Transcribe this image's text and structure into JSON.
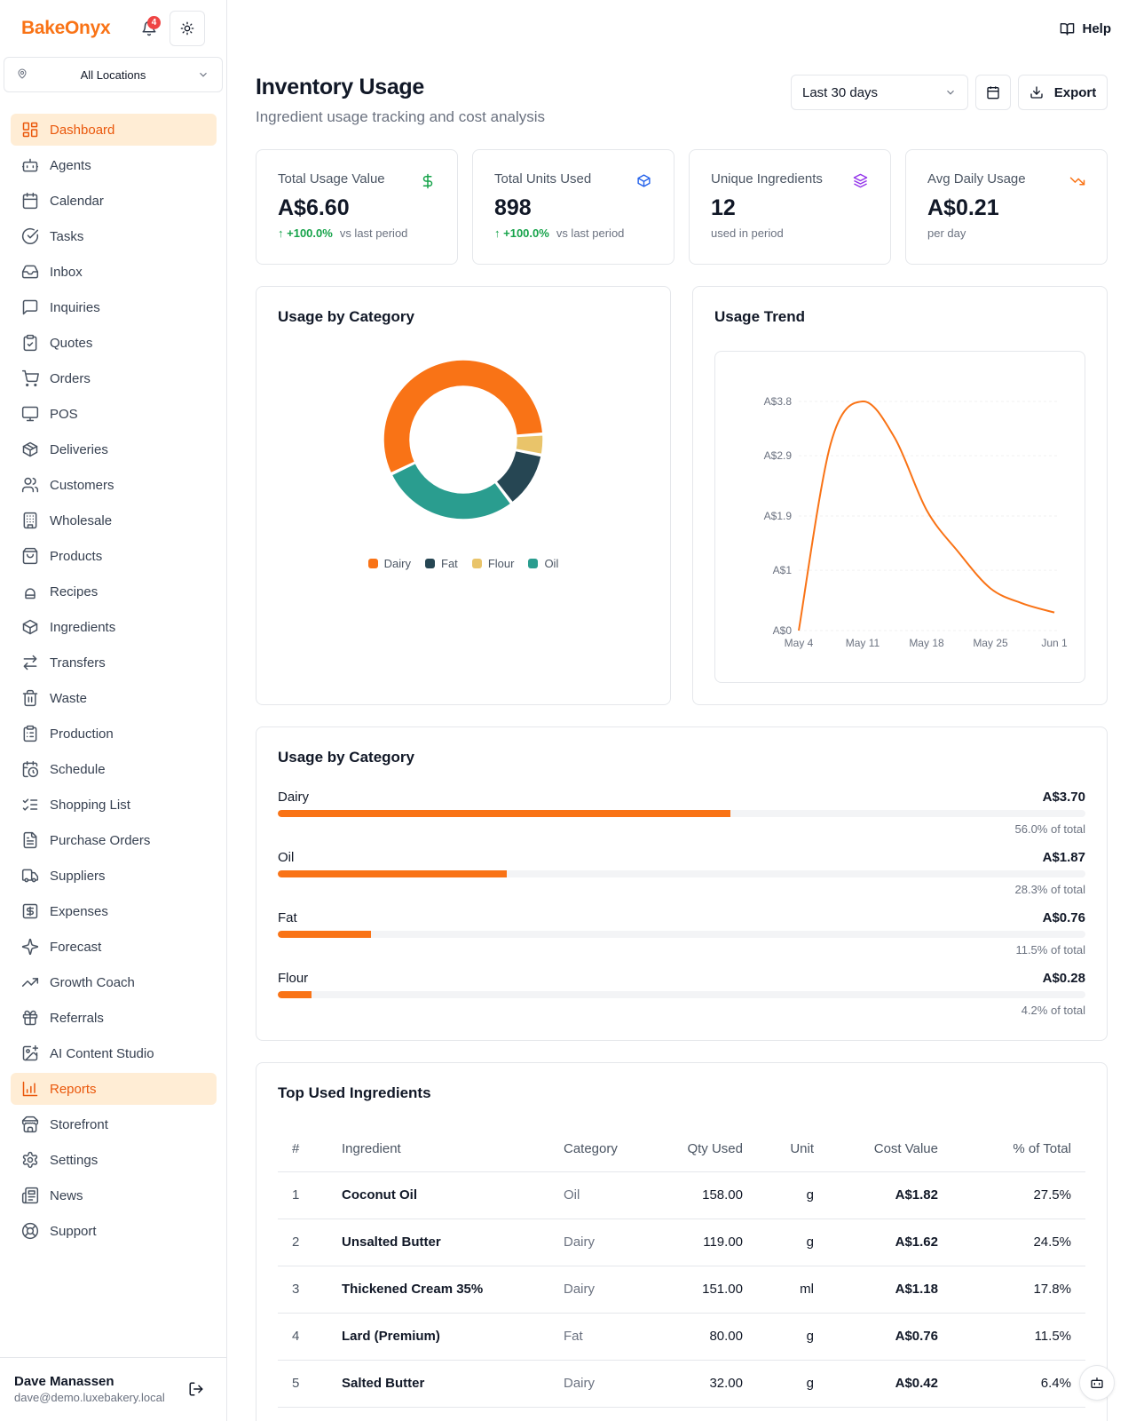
{
  "app": {
    "brand": "BakeOnyx",
    "notification_count": "4"
  },
  "sidebar": {
    "location": "All Locations",
    "items": [
      {
        "label": "Dashboard",
        "icon": "dashboard-icon",
        "active": true
      },
      {
        "label": "Agents",
        "icon": "bot-icon"
      },
      {
        "label": "Calendar",
        "icon": "calendar-icon"
      },
      {
        "label": "Tasks",
        "icon": "check-circle-icon"
      },
      {
        "label": "Inbox",
        "icon": "inbox-icon"
      },
      {
        "label": "Inquiries",
        "icon": "message-icon"
      },
      {
        "label": "Quotes",
        "icon": "clipboard-check-icon"
      },
      {
        "label": "Orders",
        "icon": "cart-icon"
      },
      {
        "label": "POS",
        "icon": "monitor-icon"
      },
      {
        "label": "Deliveries",
        "icon": "package-icon"
      },
      {
        "label": "Customers",
        "icon": "users-icon"
      },
      {
        "label": "Wholesale",
        "icon": "building-icon"
      },
      {
        "label": "Products",
        "icon": "shopping-bag-icon"
      },
      {
        "label": "Recipes",
        "icon": "chef-hat-icon"
      },
      {
        "label": "Ingredients",
        "icon": "box-icon"
      },
      {
        "label": "Transfers",
        "icon": "arrows-swap-icon"
      },
      {
        "label": "Waste",
        "icon": "trash-icon"
      },
      {
        "label": "Production",
        "icon": "clipboard-icon"
      },
      {
        "label": "Schedule",
        "icon": "calendar-clock-icon"
      },
      {
        "label": "Shopping List",
        "icon": "list-checks-icon"
      },
      {
        "label": "Purchase Orders",
        "icon": "file-text-icon"
      },
      {
        "label": "Suppliers",
        "icon": "truck-icon"
      },
      {
        "label": "Expenses",
        "icon": "dollar-square-icon"
      },
      {
        "label": "Forecast",
        "icon": "sparkles-icon"
      },
      {
        "label": "Growth Coach",
        "icon": "trending-up-icon"
      },
      {
        "label": "Referrals",
        "icon": "gift-icon"
      },
      {
        "label": "AI Content Studio",
        "icon": "image-plus-icon"
      },
      {
        "label": "Reports",
        "icon": "bar-chart-icon",
        "active": true
      },
      {
        "label": "Storefront",
        "icon": "store-icon"
      },
      {
        "label": "Settings",
        "icon": "gear-icon"
      },
      {
        "label": "News",
        "icon": "newspaper-icon"
      },
      {
        "label": "Support",
        "icon": "life-buoy-icon"
      }
    ],
    "user": {
      "name": "Dave Manassen",
      "email": "dave@demo.luxebakery.local"
    }
  },
  "header": {
    "help": "Help",
    "title": "Inventory Usage",
    "subtitle": "Ingredient usage tracking and cost analysis",
    "range": "Last 30 days",
    "export": "Export"
  },
  "stats": [
    {
      "label": "Total Usage Value",
      "value": "A$6.60",
      "change": "+100.0%",
      "foot": "vs last period",
      "icon": "dollar-icon",
      "icon_color": "#16a34a"
    },
    {
      "label": "Total Units Used",
      "value": "898",
      "change": "+100.0%",
      "foot": "vs last period",
      "icon": "box-icon",
      "icon_color": "#2563eb"
    },
    {
      "label": "Unique Ingredients",
      "value": "12",
      "change": "",
      "foot": "used in period",
      "icon": "layers-icon",
      "icon_color": "#9333ea"
    },
    {
      "label": "Avg Daily Usage",
      "value": "A$0.21",
      "change": "",
      "foot": "per day",
      "icon": "trending-down-icon",
      "icon_color": "#f97316"
    }
  ],
  "donut": {
    "title": "Usage by Category",
    "chart_data": {
      "type": "pie",
      "categories": [
        "Dairy",
        "Fat",
        "Flour",
        "Oil"
      ],
      "values": [
        3.7,
        0.76,
        0.28,
        1.87
      ],
      "colors": [
        "#f97316",
        "#264653",
        "#e9c46a",
        "#2a9d8f"
      ],
      "legend": "bottom"
    }
  },
  "trend": {
    "title": "Usage Trend",
    "chart_data": {
      "type": "line",
      "x": [
        "May 4",
        "May 8",
        "May 11",
        "May 14",
        "May 18",
        "May 21",
        "May 25",
        "May 28",
        "Jun 1"
      ],
      "values": [
        0,
        3.1,
        3.8,
        3.2,
        2.0,
        1.3,
        0.7,
        0.45,
        0.3
      ],
      "x_ticks": [
        "May 4",
        "May 11",
        "May 18",
        "May 25",
        "Jun 1"
      ],
      "y_ticks": [
        "A$0",
        "A$1",
        "A$1.9",
        "A$2.9",
        "A$3.8"
      ],
      "y_tick_values": [
        0,
        1,
        1.9,
        2.9,
        3.8
      ],
      "ylim": [
        0,
        3.8
      ],
      "color": "#f97316",
      "grid": true
    }
  },
  "bars": {
    "title": "Usage by Category",
    "items": [
      {
        "name": "Dairy",
        "amount": "A$3.70",
        "pct_label": "56.0% of total",
        "pct": 56.0
      },
      {
        "name": "Oil",
        "amount": "A$1.87",
        "pct_label": "28.3% of total",
        "pct": 28.3
      },
      {
        "name": "Fat",
        "amount": "A$0.76",
        "pct_label": "11.5% of total",
        "pct": 11.5
      },
      {
        "name": "Flour",
        "amount": "A$0.28",
        "pct_label": "4.2% of total",
        "pct": 4.2
      }
    ]
  },
  "table": {
    "title": "Top Used Ingredients",
    "headers": [
      "#",
      "Ingredient",
      "Category",
      "Qty Used",
      "Unit",
      "Cost Value",
      "% of Total"
    ],
    "rows": [
      [
        "1",
        "Coconut Oil",
        "Oil",
        "158.00",
        "g",
        "A$1.82",
        "27.5%"
      ],
      [
        "2",
        "Unsalted Butter",
        "Dairy",
        "119.00",
        "g",
        "A$1.62",
        "24.5%"
      ],
      [
        "3",
        "Thickened Cream 35%",
        "Dairy",
        "151.00",
        "ml",
        "A$1.18",
        "17.8%"
      ],
      [
        "4",
        "Lard (Premium)",
        "Fat",
        "80.00",
        "g",
        "A$0.76",
        "11.5%"
      ],
      [
        "5",
        "Salted Butter",
        "Dairy",
        "32.00",
        "g",
        "A$0.42",
        "6.4%"
      ]
    ]
  }
}
